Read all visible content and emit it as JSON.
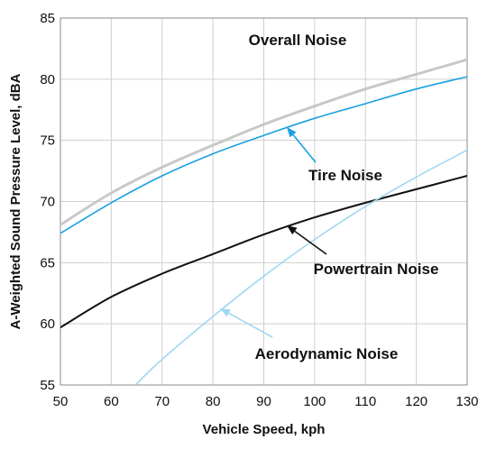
{
  "chart_data": {
    "type": "line",
    "title": "",
    "xlabel": "Vehicle Speed, kph",
    "ylabel": "A-Weighted Sound Pressure Level, dBA",
    "xlim": [
      50,
      130
    ],
    "ylim": [
      55,
      85
    ],
    "x_ticks": [
      50,
      60,
      70,
      80,
      90,
      100,
      110,
      120,
      130
    ],
    "y_ticks": [
      55,
      60,
      65,
      70,
      75,
      80,
      85
    ],
    "grid": true,
    "legend": "none",
    "series": [
      {
        "name": "Overall Noise",
        "color": "#c8c8c8",
        "x": [
          50,
          60,
          70,
          80,
          90,
          100,
          110,
          120,
          130
        ],
        "y": [
          68.1,
          70.7,
          72.8,
          74.6,
          76.3,
          77.8,
          79.2,
          80.4,
          81.6
        ]
      },
      {
        "name": "Tire Noise",
        "color": "#1aa0e0",
        "x": [
          50,
          60,
          70,
          80,
          90,
          100,
          110,
          120,
          130
        ],
        "y": [
          67.4,
          69.9,
          72.1,
          73.9,
          75.4,
          76.8,
          78.0,
          79.2,
          80.2
        ]
      },
      {
        "name": "Powertrain Noise",
        "color": "#111111",
        "x": [
          50,
          60,
          70,
          80,
          90,
          100,
          110,
          120,
          130
        ],
        "y": [
          59.7,
          62.2,
          64.1,
          65.7,
          67.3,
          68.7,
          69.9,
          71.0,
          72.1
        ]
      },
      {
        "name": "Aerodynamic Noise",
        "color": "#9fd8f2",
        "x": [
          65,
          70,
          80,
          90,
          100,
          110,
          120,
          130
        ],
        "y": [
          55.1,
          57.1,
          60.6,
          63.9,
          66.9,
          69.6,
          72.0,
          74.2
        ]
      }
    ],
    "annotations": [
      {
        "text": "Overall Noise",
        "series": 0,
        "has_arrow": false
      },
      {
        "text": "Tire Noise",
        "series": 1,
        "has_arrow": true
      },
      {
        "text": "Powertrain Noise",
        "series": 2,
        "has_arrow": true
      },
      {
        "text": "Aerodynamic Noise",
        "series": 3,
        "has_arrow": true
      }
    ]
  }
}
